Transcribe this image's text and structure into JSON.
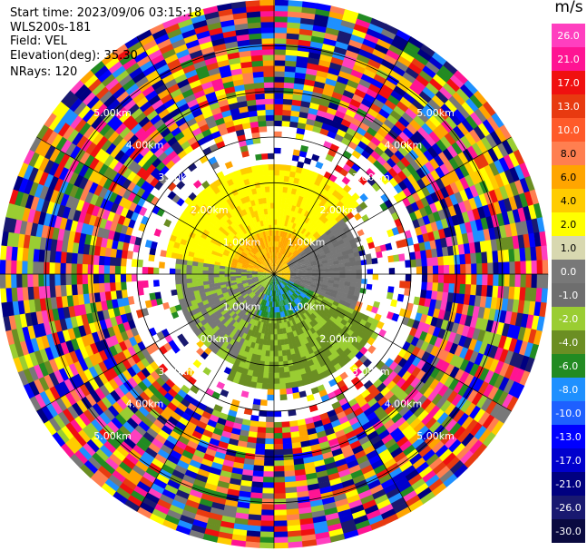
{
  "info": {
    "start_time": "Start time: 2023/09/06 03:15:18",
    "instrument": "WLS200s-181",
    "field": "Field: VEL",
    "elevation": "Elevation(deg): 35.30",
    "nrays": "NRays: 120"
  },
  "chart_data": {
    "type": "heatmap",
    "projection": "polar-ppi",
    "field": "VEL",
    "unit_label": "m/s",
    "range_rings_km": [
      1,
      2,
      3,
      4,
      5
    ],
    "ring_labels": [
      "1.00km",
      "2.00km",
      "3.00km",
      "4.00km",
      "5.00km"
    ],
    "max_range_km": 6.0,
    "n_rays": 120,
    "spokes_deg": [
      0,
      30,
      60,
      90,
      120,
      150,
      180,
      210,
      240,
      270,
      300,
      330
    ],
    "colorbar": {
      "ticks": [
        "26.0",
        "21.0",
        "17.0",
        "13.0",
        "10.0",
        "8.0",
        "6.0",
        "4.0",
        "2.0",
        "1.0",
        "0.0",
        "-1.0",
        "-2.0",
        "-4.0",
        "-6.0",
        "-8.0",
        "-10.0",
        "-13.0",
        "-17.0",
        "-21.0",
        "-26.0",
        "-30.0"
      ],
      "colors": [
        "#ff3fbf",
        "#ff1493",
        "#f01010",
        "#e83a10",
        "#ff5a2a",
        "#ff7f50",
        "#ffa500",
        "#ffcc00",
        "#ffff00",
        "#d8d8b0",
        "#787878",
        "#6e6e6e",
        "#9acd32",
        "#6b8e23",
        "#228b22",
        "#1e90ff",
        "#1e60ff",
        "#0000ff",
        "#0000cd",
        "#000080",
        "#191970",
        "#0a0a40"
      ]
    }
  }
}
